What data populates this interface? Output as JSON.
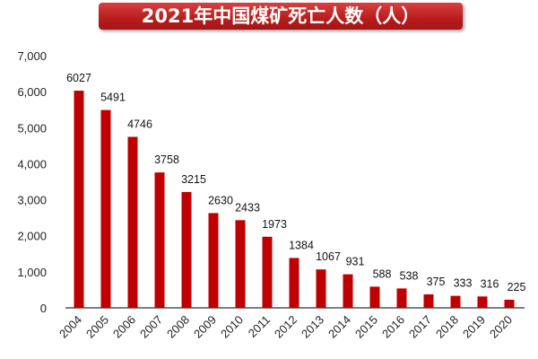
{
  "chart_data": {
    "type": "bar",
    "title": "2021年中国煤矿死亡人数（人）",
    "categories": [
      "2004",
      "2005",
      "2006",
      "2007",
      "2008",
      "2009",
      "2010",
      "2011",
      "2012",
      "2013",
      "2014",
      "2015",
      "2016",
      "2017",
      "2018",
      "2019",
      "2020"
    ],
    "values": [
      6027,
      5491,
      4746,
      3758,
      3215,
      2630,
      2433,
      1973,
      1384,
      1067,
      931,
      588,
      538,
      375,
      333,
      316,
      225
    ],
    "ylim": [
      0,
      7000
    ],
    "yticks": [
      "0",
      "1,000",
      "2,000",
      "3,000",
      "4,000",
      "5,000",
      "6,000",
      "7,000"
    ],
    "grid": false,
    "legend": "none",
    "bar_color": "#c00000"
  }
}
